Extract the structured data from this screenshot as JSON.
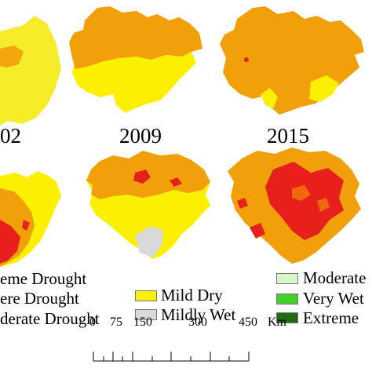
{
  "years": {
    "y2002_partial": "02",
    "y2009": "2009",
    "y2015": "2015"
  },
  "legend": {
    "col1": [
      "eme Drought",
      "ere Drought",
      "derate Drought"
    ],
    "col2": [
      "Mild Dry",
      "Mildly Wet"
    ],
    "col3": [
      "Moderate",
      "Very Wet",
      "Extreme"
    ]
  },
  "colors": {
    "extreme_drought": "#e8201c",
    "severe_drought": "#f2660f",
    "moderate_drought": "#f2a00a",
    "mild_dry": "#fbf000",
    "mildly_wet": "#d9d9d9",
    "moderate_wet": "#d6f7c8",
    "very_wet": "#44d02a",
    "extreme_wet": "#1f6b12"
  },
  "scale": {
    "ticks": [
      "0",
      "75",
      "150",
      "300",
      "450"
    ],
    "unit": "Km"
  }
}
